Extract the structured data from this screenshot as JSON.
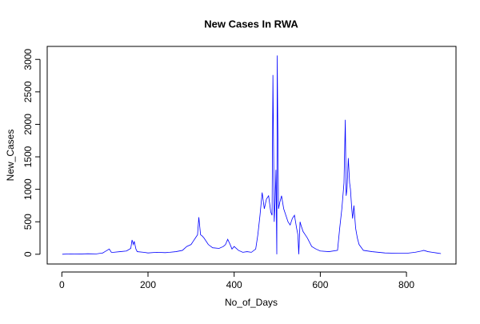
{
  "chart_data": {
    "type": "line",
    "title": "New Cases In RWA",
    "x_label": "No_of_Days",
    "y_label": "New_Cases",
    "x": [
      1,
      20,
      40,
      60,
      80,
      95,
      100,
      105,
      110,
      115,
      120,
      135,
      150,
      160,
      163,
      166,
      168,
      172,
      175,
      190,
      200,
      220,
      240,
      250,
      265,
      280,
      290,
      300,
      305,
      310,
      315,
      318,
      322,
      326,
      330,
      340,
      350,
      365,
      375,
      380,
      385,
      390,
      395,
      400,
      410,
      420,
      430,
      440,
      450,
      455,
      460,
      465,
      470,
      475,
      480,
      485,
      488,
      490,
      493,
      495,
      497,
      499,
      500,
      503,
      506,
      510,
      515,
      520,
      525,
      530,
      535,
      540,
      545,
      548,
      550,
      553,
      555,
      560,
      565,
      570,
      580,
      590,
      600,
      620,
      640,
      645,
      650,
      655,
      658,
      660,
      662,
      665,
      668,
      670,
      673,
      675,
      678,
      682,
      686,
      690,
      700,
      720,
      750,
      780,
      800,
      820,
      835,
      840,
      850,
      860,
      870,
      880
    ],
    "series": [
      {
        "name": "New_Cases",
        "color": "#0000ff",
        "values": [
          0,
          5,
          3,
          8,
          5,
          20,
          40,
          60,
          80,
          30,
          30,
          40,
          50,
          90,
          220,
          150,
          200,
          80,
          40,
          30,
          20,
          30,
          25,
          30,
          40,
          60,
          120,
          150,
          200,
          250,
          300,
          570,
          300,
          280,
          250,
          150,
          100,
          90,
          120,
          150,
          230,
          160,
          80,
          120,
          60,
          30,
          40,
          30,
          80,
          300,
          600,
          950,
          700,
          850,
          900,
          650,
          600,
          2760,
          500,
          800,
          1300,
          0,
          3060,
          700,
          800,
          900,
          700,
          600,
          500,
          450,
          550,
          600,
          400,
          300,
          0,
          500,
          450,
          350,
          300,
          250,
          120,
          80,
          50,
          40,
          60,
          400,
          700,
          1100,
          2070,
          900,
          1000,
          1480,
          1100,
          1000,
          700,
          550,
          750,
          400,
          250,
          150,
          60,
          40,
          20,
          15,
          15,
          30,
          50,
          60,
          40,
          30,
          20,
          10
        ]
      }
    ],
    "xlim": [
      -34,
      915
    ],
    "ylim": [
      -150,
      3200
    ],
    "xticks": [
      0,
      200,
      400,
      600,
      800
    ],
    "yticks": [
      0,
      500,
      1000,
      1500,
      2000,
      2500,
      3000
    ]
  }
}
